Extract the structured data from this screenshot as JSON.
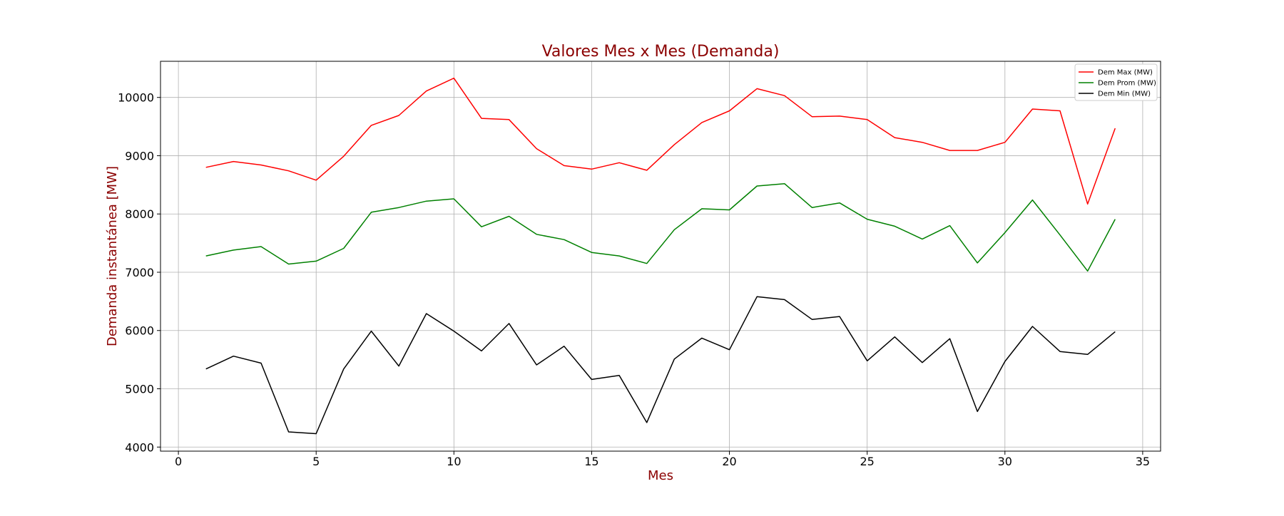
{
  "chart_data": {
    "type": "line",
    "title": "Valores Mes x Mes (Demanda)",
    "xlabel": "Mes",
    "ylabel": "Demanda instantánea [MW]",
    "title_color": "#8b0000",
    "xlim": [
      -0.65,
      35.65
    ],
    "ylim": [
      3930,
      10620
    ],
    "xticks": [
      0,
      5,
      10,
      15,
      20,
      25,
      30,
      35
    ],
    "yticks": [
      4000,
      5000,
      6000,
      7000,
      8000,
      9000,
      10000
    ],
    "grid": true,
    "legend_position": "top-right",
    "x": [
      1,
      2,
      3,
      4,
      5,
      6,
      7,
      8,
      9,
      10,
      11,
      12,
      13,
      14,
      15,
      16,
      17,
      18,
      19,
      20,
      21,
      22,
      23,
      24,
      25,
      26,
      27,
      28,
      29,
      30,
      31,
      32,
      33,
      34
    ],
    "series": [
      {
        "name": "Dem Max (MW)",
        "color": "#ff0000",
        "values": [
          8800,
          8900,
          8840,
          8740,
          8580,
          8990,
          9520,
          9690,
          10110,
          10330,
          9640,
          9620,
          9120,
          8830,
          8770,
          8880,
          8750,
          9190,
          9570,
          9770,
          10150,
          10030,
          9670,
          9680,
          9620,
          9310,
          9230,
          9090,
          9090,
          9230,
          9800,
          9770,
          8170,
          9470
        ]
      },
      {
        "name": "Dem Prom (MW)",
        "color": "#008000",
        "values": [
          7280,
          7380,
          7440,
          7140,
          7190,
          7410,
          8030,
          8110,
          8220,
          8260,
          7780,
          7960,
          7650,
          7560,
          7340,
          7280,
          7150,
          7730,
          8090,
          8070,
          8480,
          8520,
          8110,
          8190,
          7910,
          7790,
          7570,
          7800,
          7160,
          7680,
          8240,
          7640,
          7020,
          7910
        ]
      },
      {
        "name": "Dem Min (MW)",
        "color": "#000000",
        "values": [
          5340,
          5560,
          5440,
          4260,
          4230,
          5340,
          5990,
          5390,
          6290,
          5990,
          5650,
          6120,
          5410,
          5730,
          5160,
          5230,
          4420,
          5510,
          5870,
          5670,
          6580,
          6530,
          6190,
          6240,
          5480,
          5890,
          5450,
          5860,
          4610,
          5470,
          6070,
          5640,
          5590,
          5980
        ]
      }
    ]
  }
}
